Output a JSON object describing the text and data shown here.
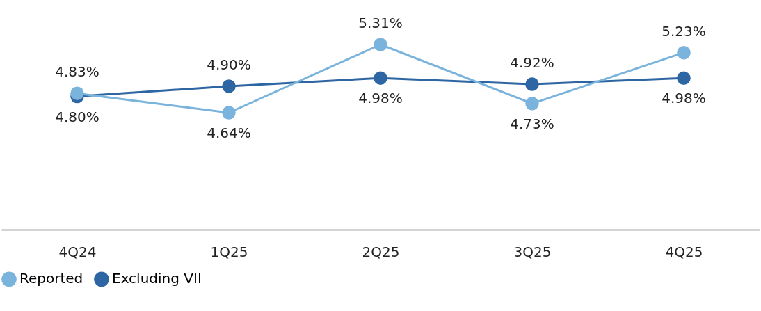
{
  "chart_data": {
    "type": "line",
    "categories": [
      "4Q24",
      "1Q25",
      "2Q25",
      "3Q25",
      "4Q25"
    ],
    "series": [
      {
        "name": "Reported",
        "color": "#7ab3dc",
        "values": [
          4.83,
          4.64,
          5.31,
          4.73,
          5.23
        ],
        "value_labels": [
          "4.83%",
          "4.64%",
          "5.31%",
          "4.73%",
          "5.23%"
        ]
      },
      {
        "name": "Excluding VII",
        "color": "#2e66a3",
        "values": [
          4.8,
          4.9,
          4.98,
          4.92,
          4.98
        ],
        "value_labels": [
          "4.80%",
          "4.90%",
          "4.98%",
          "4.92%",
          "4.98%"
        ]
      }
    ],
    "tick_labels": "x",
    "grid": false,
    "legend": "bottom",
    "marker": "circle",
    "line_style": "solid"
  }
}
